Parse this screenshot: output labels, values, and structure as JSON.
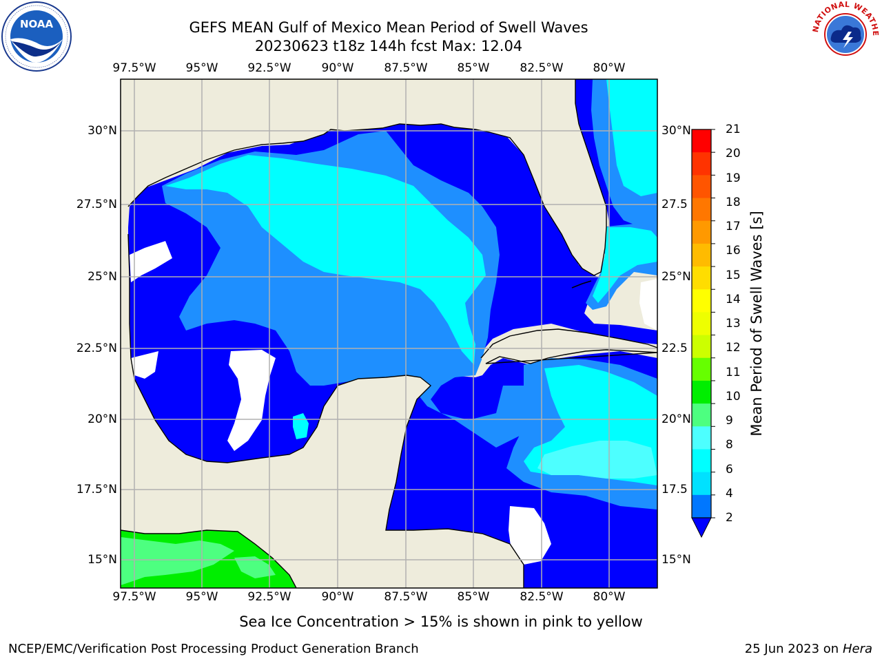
{
  "title": {
    "line1": "GEFS MEAN Gulf of Mexico Mean Period of Swell Waves",
    "line2": "20230623 t18z 144h fcst   Max: 12.04"
  },
  "logos": {
    "left": {
      "name": "noaa-logo",
      "text": "NOAA"
    },
    "right": {
      "name": "nws-logo",
      "text": "NATIONAL WEATHER SERVICE"
    }
  },
  "map": {
    "lon_labels": [
      "97.5°W",
      "95°W",
      "92.5°W",
      "90°W",
      "87.5°W",
      "85°W",
      "82.5°W",
      "80°W"
    ],
    "lat_labels_left": [
      "30°N",
      "27.5°N",
      "25°N",
      "22.5°N",
      "20°N",
      "17.5°N",
      "15°N"
    ],
    "lat_labels_right": [
      "30°N",
      "27.5",
      "25°N",
      "22.5",
      "20°N",
      "17.5",
      "15°N"
    ],
    "colors": {
      "land": "#eeecdc",
      "ocean_2_4": "#0000ff",
      "ocean_4_6": "#1e8fff",
      "ocean_6_8": "#00ffff",
      "ocean_8_10": "#4dff80",
      "ocean_10_12": "#00ee00",
      "gridline": "#b0b0b0"
    }
  },
  "colorbar": {
    "label": "Mean Period of Swell Waves [s]",
    "ticks": [
      "21",
      "20",
      "19",
      "18",
      "17",
      "16",
      "15",
      "14",
      "13",
      "12",
      "11",
      "10",
      "9",
      "8",
      "6",
      "4",
      "2"
    ],
    "colors": [
      "#ff0000",
      "#ff3300",
      "#ff5500",
      "#ff7700",
      "#ff9900",
      "#ffbb00",
      "#ffdd00",
      "#ffff00",
      "#eeff00",
      "#ccff00",
      "#66ff00",
      "#00ee00",
      "#4dff80",
      "#99ffff",
      "#4dffff",
      "#00ffff",
      "#00e1ff",
      "#0077ff"
    ],
    "extend_color": "#0000ff"
  },
  "footer": {
    "sea_ice_note": "Sea Ice Concentration > 15% is shown in pink to yellow",
    "credit": "NCEP/EMC/Verification Post Processing Product Generation Branch",
    "date": "25 Jun 2023 on",
    "machine": "Hera"
  }
}
